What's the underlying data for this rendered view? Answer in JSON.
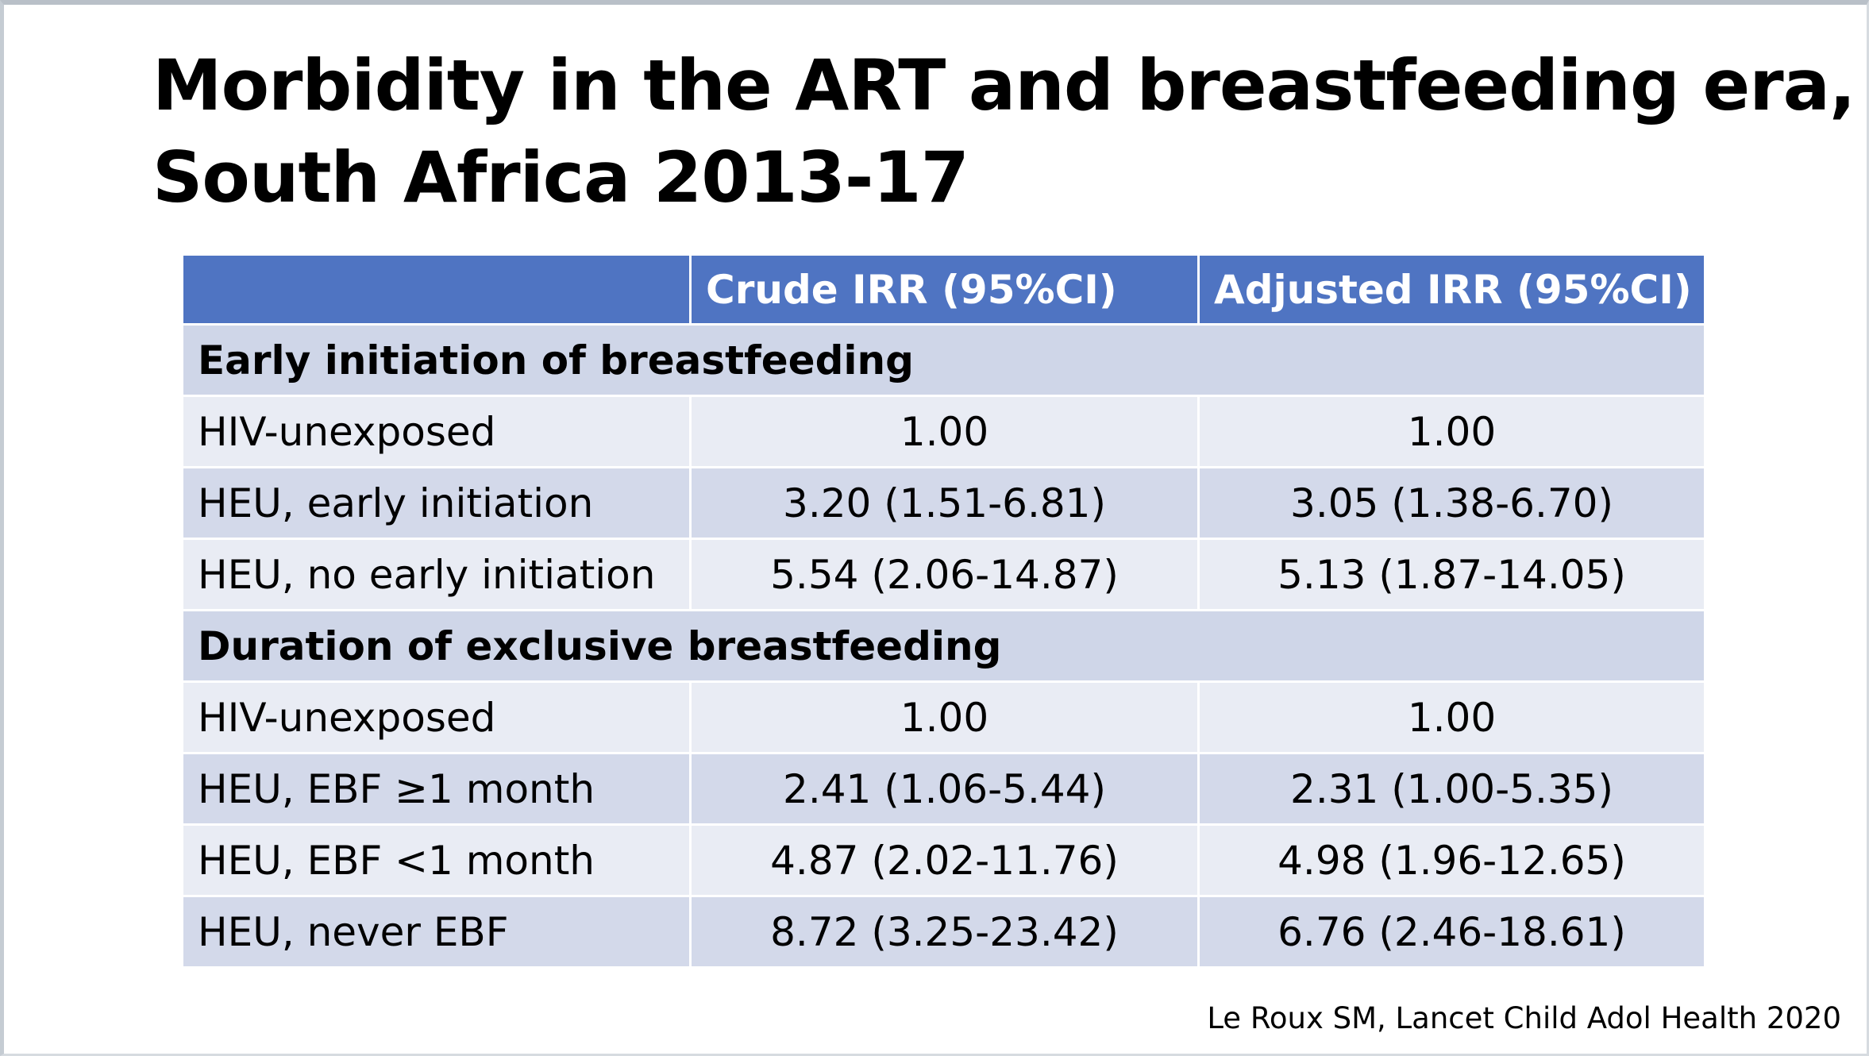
{
  "slide": {
    "title_line1": "Morbidity in the ART and breastfeeding era,",
    "title_line2": "South Africa 2013-17",
    "citation": "Le Roux SM, Lancet Child Adol Health 2020"
  },
  "table": {
    "headers": [
      "",
      "Crude IRR (95%CI)",
      "Adjusted IRR (95%CI)"
    ],
    "sections": [
      {
        "title": "Early initiation of breastfeeding",
        "rows": [
          {
            "label": "HIV-unexposed",
            "crude": "1.00",
            "adjusted": "1.00"
          },
          {
            "label": "HEU, early initiation",
            "crude": "3.20 (1.51-6.81)",
            "adjusted": "3.05 (1.38-6.70)"
          },
          {
            "label": "HEU, no early initiation",
            "crude": "5.54 (2.06-14.87)",
            "adjusted": "5.13 (1.87-14.05)"
          }
        ]
      },
      {
        "title": "Duration of exclusive breastfeeding",
        "rows": [
          {
            "label": "HIV-unexposed",
            "crude": "1.00",
            "adjusted": "1.00"
          },
          {
            "label_prefix": "HEU, EBF ",
            "label_ge": "≥1",
            "label_suffix": " month",
            "crude": "2.41 (1.06-5.44)",
            "adjusted": "2.31 (1.00-5.35)"
          },
          {
            "label": "HEU, EBF <1 month",
            "crude": "4.87 (2.02-11.76)",
            "adjusted": "4.98 (1.96-12.65)"
          },
          {
            "label": "HEU, never EBF",
            "crude": "8.72 (3.25-23.42)",
            "adjusted": "6.76 (2.46-18.61)"
          }
        ]
      }
    ]
  },
  "colors": {
    "header_bg": "#4f74c2",
    "row_light": "#e9ecf4",
    "row_dark": "#d3d9ea",
    "section_bg": "#cfd6e8"
  }
}
